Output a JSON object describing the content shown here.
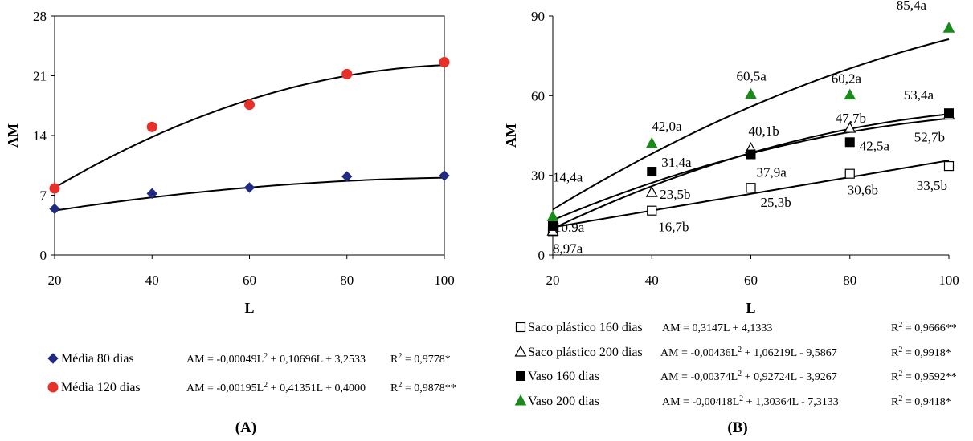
{
  "chart_data": [
    {
      "id": "A",
      "type": "scatter",
      "panel_label": "(A)",
      "xlabel": "L",
      "ylabel": "AM",
      "xlim": [
        20,
        100
      ],
      "ylim": [
        0,
        28
      ],
      "xticks": [
        "20",
        "40",
        "60",
        "80",
        "100"
      ],
      "yticks": [
        "0",
        "7",
        "14",
        "21",
        "28"
      ],
      "grid": false,
      "legend_position": "bottom",
      "series": [
        {
          "name": "Média 80 dias",
          "marker": "diamond",
          "color": "#1f2a80",
          "x": [
            20,
            40,
            60,
            80,
            100
          ],
          "y": [
            5.4,
            7.2,
            7.9,
            9.2,
            9.3
          ],
          "fit": {
            "a": -0.00049,
            "b": 0.10696,
            "c": 3.2533
          },
          "equation": "AM = -0,00049L² + 0,10696L + 3,2533",
          "r2": "R² = 0,9778*"
        },
        {
          "name": "Média 120 dias",
          "marker": "circle",
          "color": "#e8302a",
          "x": [
            20,
            40,
            60,
            80,
            100
          ],
          "y": [
            7.8,
            15.0,
            17.6,
            21.2,
            22.6
          ],
          "fit": {
            "a": -0.00195,
            "b": 0.41351,
            "c": 0.4
          },
          "equation": "AM = -0,00195L² + 0,41351L + 0,4000",
          "r2": "R² = 0,9878**"
        }
      ]
    },
    {
      "id": "B",
      "type": "scatter",
      "panel_label": "(B)",
      "xlabel": "L",
      "ylabel": "AM",
      "xlim": [
        20,
        100
      ],
      "ylim": [
        0,
        90
      ],
      "xticks": [
        "20",
        "40",
        "60",
        "80",
        "100"
      ],
      "yticks": [
        "0",
        "30",
        "60",
        "90"
      ],
      "grid": false,
      "legend_position": "bottom",
      "series": [
        {
          "name": "Saco plástico 160 dias",
          "marker": "square-open",
          "color": "#000000",
          "x": [
            20,
            40,
            60,
            80,
            100
          ],
          "y": [
            8.97,
            16.7,
            25.3,
            30.6,
            33.5
          ],
          "fit": {
            "a": 0,
            "b": 0.3147,
            "c": 4.1333
          },
          "equation": "AM = 0,3147L + 4,1333",
          "r2": "R² = 0,9666**"
        },
        {
          "name": "Saco plástico 200 dias",
          "marker": "triangle-open",
          "color": "#000000",
          "x": [
            20,
            40,
            60,
            80,
            100
          ],
          "y": [
            9.0,
            23.5,
            40.1,
            47.7,
            52.7
          ],
          "fit": {
            "a": -0.00436,
            "b": 1.06219,
            "c": -9.5867
          },
          "equation": "AM = -0,00436L² + 1,06219L - 9,5867",
          "r2": "R² = 0,9918*"
        },
        {
          "name": "Vaso 160 dias",
          "marker": "square-filled",
          "color": "#000000",
          "x": [
            20,
            40,
            60,
            80,
            100
          ],
          "y": [
            10.9,
            31.4,
            37.9,
            42.5,
            53.4
          ],
          "fit": {
            "a": -0.00374,
            "b": 0.92724,
            "c": -3.9267
          },
          "equation": "AM = -0,00374L² + 0,92724L - 3,9267",
          "r2": "R² = 0,9592**"
        },
        {
          "name": "Vaso 200 dias",
          "marker": "triangle-filled",
          "color": "#1a8a1a",
          "x": [
            20,
            40,
            60,
            80,
            100
          ],
          "y": [
            14.4,
            42.0,
            60.5,
            60.2,
            85.4
          ],
          "fit": {
            "a": -0.00418,
            "b": 1.30364,
            "c": -7.3133
          },
          "equation": "AM = -0,00418L² + 1,30364L - 7,3133",
          "r2": "R² = 0,9418*"
        }
      ],
      "annotations": [
        "10,9a",
        "8,97a",
        "16,7b",
        "25,3b",
        "30,6b",
        "33,5b",
        "14,4a",
        "42,0a",
        "60,5a",
        "60,2a",
        "85,4a",
        "31,4a",
        "37,9a",
        "42,5a",
        "53,4a",
        "23,5b",
        "40,1b",
        "47,7b",
        "52,7b"
      ]
    }
  ]
}
